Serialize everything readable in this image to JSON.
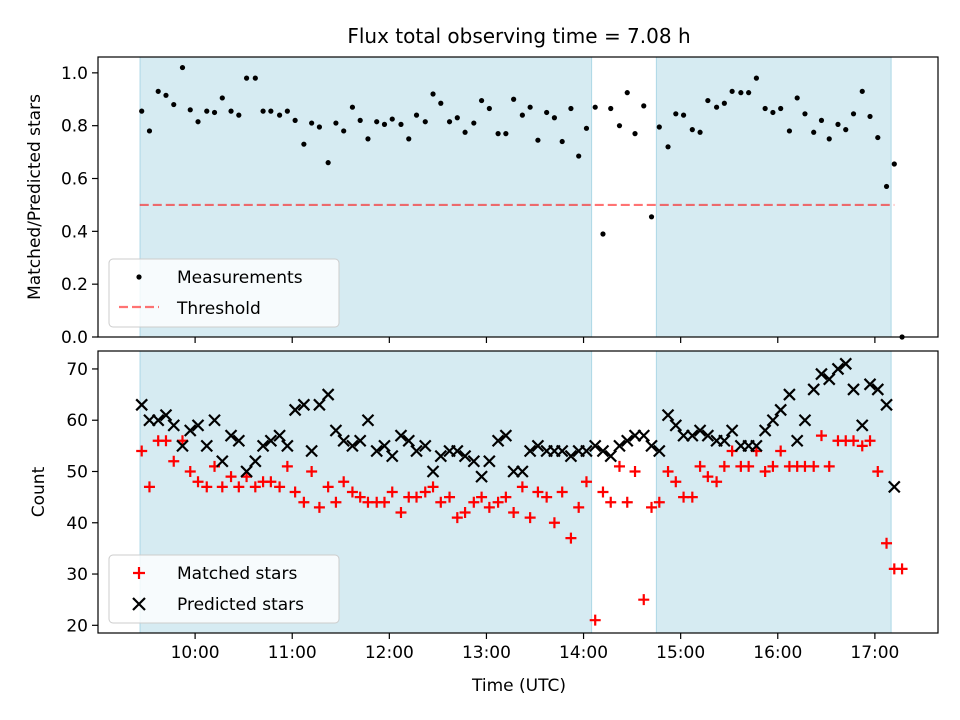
{
  "figure_title": "Flux total observing time = 7.08 h",
  "x_axis_label": "Time (UTC)",
  "x_tick_labels": [
    "10:00",
    "11:00",
    "12:00",
    "13:00",
    "14:00",
    "15:00",
    "16:00",
    "17:00"
  ],
  "colors": {
    "shade": "#add8e6",
    "measurements": "#000000",
    "threshold": "#ff0000",
    "matched": "#ff0000",
    "predicted": "#000000"
  },
  "chart_data": [
    {
      "type": "scatter",
      "ylabel": "Matched/Predicted stars",
      "ylim": [
        0,
        1.06
      ],
      "xlim": [
        9.0,
        17.65
      ],
      "yticks": [
        "0.0",
        "0.2",
        "0.4",
        "0.6",
        "0.8",
        "1.0"
      ],
      "grid": false,
      "legend_position": "lower-left",
      "shaded_intervals": [
        [
          9.433,
          14.083
        ],
        [
          14.75,
          17.167
        ]
      ],
      "series": [
        {
          "name": "Measurements",
          "marker": "dot",
          "x": [
            9.45,
            9.53,
            9.62,
            9.7,
            9.78,
            9.87,
            9.95,
            10.03,
            10.12,
            10.2,
            10.28,
            10.37,
            10.45,
            10.53,
            10.62,
            10.7,
            10.78,
            10.87,
            10.95,
            11.03,
            11.12,
            11.2,
            11.28,
            11.37,
            11.45,
            11.53,
            11.62,
            11.7,
            11.78,
            11.87,
            11.95,
            12.03,
            12.12,
            12.2,
            12.28,
            12.37,
            12.45,
            12.53,
            12.62,
            12.7,
            12.78,
            12.87,
            12.95,
            13.03,
            13.12,
            13.2,
            13.28,
            13.37,
            13.45,
            13.53,
            13.62,
            13.7,
            13.78,
            13.87,
            13.95,
            14.03,
            14.12,
            14.2,
            14.28,
            14.37,
            14.45,
            14.53,
            14.62,
            14.7,
            14.78,
            14.87,
            14.95,
            15.03,
            15.12,
            15.2,
            15.28,
            15.37,
            15.45,
            15.53,
            15.62,
            15.7,
            15.78,
            15.87,
            15.95,
            16.03,
            16.12,
            16.2,
            16.28,
            16.37,
            16.45,
            16.53,
            16.62,
            16.7,
            16.78,
            16.87,
            16.95,
            17.03,
            17.12,
            17.2,
            17.28
          ],
          "y": [
            0.855,
            0.78,
            0.93,
            0.915,
            0.88,
            1.02,
            0.86,
            0.815,
            0.855,
            0.85,
            0.905,
            0.855,
            0.84,
            0.98,
            0.98,
            0.855,
            0.855,
            0.84,
            0.855,
            0.82,
            0.73,
            0.81,
            0.795,
            0.66,
            0.81,
            0.78,
            0.87,
            0.82,
            0.75,
            0.815,
            0.805,
            0.825,
            0.805,
            0.75,
            0.84,
            0.815,
            0.92,
            0.885,
            0.815,
            0.83,
            0.775,
            0.81,
            0.895,
            0.865,
            0.77,
            0.77,
            0.9,
            0.84,
            0.87,
            0.745,
            0.85,
            0.83,
            0.74,
            0.865,
            0.685,
            0.79,
            0.87,
            0.39,
            0.865,
            0.8,
            0.925,
            0.77,
            0.875,
            0.455,
            0.795,
            0.72,
            0.845,
            0.84,
            0.785,
            0.775,
            0.895,
            0.87,
            0.885,
            0.93,
            0.925,
            0.925,
            0.98,
            0.865,
            0.85,
            0.865,
            0.78,
            0.905,
            0.845,
            0.775,
            0.82,
            0.75,
            0.805,
            0.785,
            0.845,
            0.93,
            0.835,
            0.755,
            0.57,
            0.655,
            0.0
          ]
        },
        {
          "name": "Threshold",
          "style": "dashed",
          "x": [
            9.43,
            17.2
          ],
          "y": [
            0.5,
            0.5
          ]
        }
      ]
    },
    {
      "type": "scatter",
      "ylabel": "Count",
      "xlabel": "Time (UTC)",
      "ylim": [
        18.5,
        73.5
      ],
      "xlim": [
        9.0,
        17.65
      ],
      "yticks": [
        "20",
        "30",
        "40",
        "50",
        "60",
        "70"
      ],
      "grid": false,
      "legend_position": "lower-left",
      "shaded_intervals": [
        [
          9.433,
          14.083
        ],
        [
          14.75,
          17.167
        ]
      ],
      "series": [
        {
          "name": "Matched stars",
          "marker": "plus",
          "x": [
            9.45,
            9.53,
            9.62,
            9.7,
            9.78,
            9.87,
            9.95,
            10.03,
            10.12,
            10.2,
            10.28,
            10.37,
            10.45,
            10.53,
            10.62,
            10.7,
            10.78,
            10.87,
            10.95,
            11.03,
            11.12,
            11.2,
            11.28,
            11.37,
            11.45,
            11.53,
            11.62,
            11.7,
            11.78,
            11.87,
            11.95,
            12.03,
            12.12,
            12.2,
            12.28,
            12.37,
            12.45,
            12.53,
            12.62,
            12.7,
            12.78,
            12.87,
            12.95,
            13.03,
            13.12,
            13.2,
            13.28,
            13.37,
            13.45,
            13.53,
            13.62,
            13.7,
            13.78,
            13.87,
            13.95,
            14.03,
            14.12,
            14.2,
            14.28,
            14.37,
            14.45,
            14.53,
            14.62,
            14.7,
            14.78,
            14.87,
            14.95,
            15.03,
            15.12,
            15.2,
            15.28,
            15.37,
            15.45,
            15.53,
            15.62,
            15.7,
            15.78,
            15.87,
            15.95,
            16.03,
            16.12,
            16.2,
            16.28,
            16.37,
            16.45,
            16.53,
            16.62,
            16.7,
            16.78,
            16.87,
            16.95,
            17.03,
            17.12,
            17.2,
            17.28
          ],
          "y": [
            54,
            47,
            56,
            56,
            52,
            56,
            50,
            48,
            47,
            51,
            47,
            49,
            47,
            49,
            47,
            48,
            48,
            47,
            51,
            46,
            44,
            50,
            43,
            47,
            44,
            48,
            46,
            45,
            44,
            44,
            44,
            46,
            42,
            45,
            45,
            46,
            47,
            44,
            45,
            41,
            42,
            44,
            45,
            43,
            44,
            45,
            42,
            47,
            41,
            46,
            45,
            40,
            46,
            37,
            43,
            48,
            21,
            46,
            44,
            51,
            44,
            50,
            25,
            43,
            44,
            50,
            48,
            45,
            45,
            51,
            49,
            48,
            51,
            54,
            51,
            51,
            54,
            50,
            51,
            54,
            51,
            51,
            51,
            51,
            57,
            51,
            56,
            56,
            56,
            55,
            56,
            50,
            36,
            31,
            31
          ]
        },
        {
          "name": "Predicted stars",
          "marker": "x",
          "x": [
            9.45,
            9.53,
            9.62,
            9.7,
            9.78,
            9.87,
            9.95,
            10.03,
            10.12,
            10.2,
            10.28,
            10.37,
            10.45,
            10.53,
            10.62,
            10.7,
            10.78,
            10.87,
            10.95,
            11.03,
            11.12,
            11.2,
            11.28,
            11.37,
            11.45,
            11.53,
            11.62,
            11.7,
            11.78,
            11.87,
            11.95,
            12.03,
            12.12,
            12.2,
            12.28,
            12.37,
            12.45,
            12.53,
            12.62,
            12.7,
            12.78,
            12.87,
            12.95,
            13.03,
            13.12,
            13.2,
            13.28,
            13.37,
            13.45,
            13.53,
            13.62,
            13.7,
            13.78,
            13.87,
            13.95,
            14.03,
            14.12,
            14.2,
            14.28,
            14.37,
            14.45,
            14.53,
            14.62,
            14.7,
            14.78,
            14.87,
            14.95,
            15.03,
            15.12,
            15.2,
            15.28,
            15.37,
            15.45,
            15.53,
            15.62,
            15.7,
            15.78,
            15.87,
            15.95,
            16.03,
            16.12,
            16.2,
            16.28,
            16.37,
            16.45,
            16.53,
            16.62,
            16.7,
            16.78,
            16.87,
            16.95,
            17.03,
            17.12,
            17.2
          ],
          "y": [
            63,
            60,
            60,
            61,
            59,
            55,
            58,
            59,
            55,
            60,
            52,
            57,
            56,
            50,
            52,
            55,
            56,
            57,
            55,
            62,
            63,
            54,
            63,
            65,
            58,
            56,
            55,
            56,
            60,
            54,
            55,
            53,
            57,
            56,
            54,
            55,
            50,
            53,
            54,
            54,
            53,
            52,
            49,
            52,
            56,
            57,
            50,
            50,
            54,
            55,
            54,
            54,
            54,
            53,
            54,
            54,
            55,
            54,
            53,
            55,
            56,
            57,
            57,
            55,
            54,
            61,
            59,
            57,
            57,
            58,
            57,
            56,
            56,
            58,
            55,
            55,
            55,
            58,
            60,
            62,
            65,
            56,
            60,
            66,
            69,
            68,
            70,
            71,
            66,
            59,
            67,
            66,
            63,
            47
          ]
        }
      ]
    }
  ]
}
